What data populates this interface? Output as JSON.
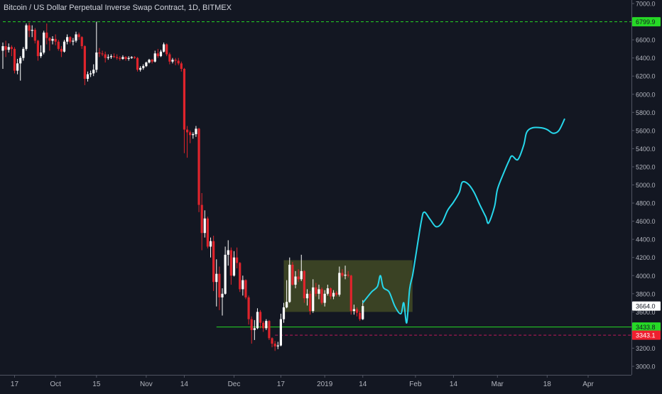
{
  "chart_data": {
    "type": "candlestick",
    "title": "Bitcoin / US Dollar Perpetual Inverse Swap Contract, 1D, BITMEX",
    "grid": false,
    "y_axis": {
      "position": "right",
      "ylim": [
        2900,
        7050
      ],
      "ticks": [
        "7000.0",
        "6800.0",
        "6600.0",
        "6400.0",
        "6200.0",
        "6000.0",
        "5800.0",
        "5600.0",
        "5400.0",
        "5200.0",
        "5000.0",
        "4800.0",
        "4600.0",
        "4400.0",
        "4200.0",
        "4000.0",
        "3800.0",
        "3600.0",
        "3400.0",
        "3200.0",
        "3000.0"
      ]
    },
    "x_axis": {
      "start_date": "2018-09-13",
      "end_date": "2019-04-04",
      "ticks": [
        {
          "label": "17",
          "date": "2018-09-17"
        },
        {
          "label": "Oct",
          "date": "2018-10-01"
        },
        {
          "label": "15",
          "date": "2018-10-15"
        },
        {
          "label": "Nov",
          "date": "2018-11-01"
        },
        {
          "label": "14",
          "date": "2018-11-14"
        },
        {
          "label": "Dec",
          "date": "2018-12-01"
        },
        {
          "label": "17",
          "date": "2018-12-17"
        },
        {
          "label": "2019",
          "date": "2019-01-01"
        },
        {
          "label": "14",
          "date": "2019-01-14"
        },
        {
          "label": "Feb",
          "date": "2019-02-01"
        },
        {
          "label": "14",
          "date": "2019-02-14"
        },
        {
          "label": "Mar",
          "date": "2019-03-01"
        },
        {
          "label": "18",
          "date": "2019-03-18"
        },
        {
          "label": "Apr",
          "date": "2019-04-01"
        }
      ]
    },
    "price_labels": [
      {
        "text": "6799.9",
        "value": 6799.9,
        "color": "#26d926",
        "text_color": "#131722"
      },
      {
        "text": "3664.0",
        "value": 3664.0,
        "color": "#ffffff",
        "text_color": "#131722"
      },
      {
        "text": "3433.8",
        "value": 3433.8,
        "color": "#26d926",
        "text_color": "#131722"
      },
      {
        "text": "3343.1",
        "value": 3343.1,
        "color": "#ef1f2f",
        "text_color": "#ffffff"
      }
    ],
    "horizontal_lines": [
      {
        "value": 6799.9,
        "style": "dashed",
        "color": "#26d926",
        "from": "2018-09-13",
        "to": "2019-04-04"
      },
      {
        "value": 3433.8,
        "style": "solid",
        "color": "#26d926",
        "from": "2018-11-25",
        "to": "2019-04-04"
      },
      {
        "value": 3343.1,
        "style": "dashed",
        "color": "#c2185b",
        "from": "2018-12-15",
        "to": "2019-04-04"
      }
    ],
    "rectangle": {
      "from": "2018-12-18",
      "to": "2019-01-31",
      "y_top": 4170,
      "y_bottom": 3600,
      "fill": "#5b6626",
      "opacity": 0.55
    },
    "projection_path": {
      "color": "#26d7eb",
      "points": [
        [
          "2019-01-14",
          3700
        ],
        [
          "2019-01-17",
          3820
        ],
        [
          "2019-01-19",
          3880
        ],
        [
          "2019-01-20",
          4000
        ],
        [
          "2019-01-21",
          3870
        ],
        [
          "2019-01-23",
          3820
        ],
        [
          "2019-01-25",
          3660
        ],
        [
          "2019-01-27",
          3580
        ],
        [
          "2019-01-28",
          3700
        ],
        [
          "2019-01-29",
          3480
        ],
        [
          "2019-01-30",
          3850
        ],
        [
          "2019-01-31",
          4000
        ],
        [
          "2019-02-01",
          4200
        ],
        [
          "2019-02-03",
          4600
        ],
        [
          "2019-02-04",
          4700
        ],
        [
          "2019-02-06",
          4620
        ],
        [
          "2019-02-08",
          4540
        ],
        [
          "2019-02-10",
          4580
        ],
        [
          "2019-02-12",
          4720
        ],
        [
          "2019-02-14",
          4810
        ],
        [
          "2019-02-16",
          4920
        ],
        [
          "2019-02-17",
          5030
        ],
        [
          "2019-02-19",
          5010
        ],
        [
          "2019-02-21",
          4920
        ],
        [
          "2019-02-23",
          4780
        ],
        [
          "2019-02-25",
          4650
        ],
        [
          "2019-02-26",
          4580
        ],
        [
          "2019-02-28",
          4760
        ],
        [
          "2019-03-01",
          4950
        ],
        [
          "2019-03-03",
          5120
        ],
        [
          "2019-03-05",
          5270
        ],
        [
          "2019-03-06",
          5320
        ],
        [
          "2019-03-08",
          5280
        ],
        [
          "2019-03-10",
          5440
        ],
        [
          "2019-03-11",
          5580
        ],
        [
          "2019-03-13",
          5630
        ],
        [
          "2019-03-16",
          5630
        ],
        [
          "2019-03-18",
          5610
        ],
        [
          "2019-03-20",
          5570
        ],
        [
          "2019-03-22",
          5600
        ],
        [
          "2019-03-24",
          5730
        ]
      ]
    },
    "candles": [
      [
        "2018-09-13",
        6480,
        6570,
        6280,
        6530
      ],
      [
        "2018-09-14",
        6530,
        6590,
        6410,
        6490
      ],
      [
        "2018-09-15",
        6490,
        6560,
        6460,
        6520
      ],
      [
        "2018-09-16",
        6520,
        6540,
        6420,
        6500
      ],
      [
        "2018-09-17",
        6500,
        6520,
        6230,
        6260
      ],
      [
        "2018-09-18",
        6260,
        6390,
        6220,
        6340
      ],
      [
        "2018-09-19",
        6340,
        6420,
        6150,
        6400
      ],
      [
        "2018-09-20",
        6400,
        6520,
        6370,
        6500
      ],
      [
        "2018-09-21",
        6500,
        6780,
        6480,
        6760
      ],
      [
        "2018-09-22",
        6760,
        6790,
        6630,
        6700
      ],
      [
        "2018-09-23",
        6700,
        6760,
        6630,
        6710
      ],
      [
        "2018-09-24",
        6710,
        6730,
        6560,
        6590
      ],
      [
        "2018-09-25",
        6590,
        6600,
        6370,
        6420
      ],
      [
        "2018-09-26",
        6420,
        6540,
        6400,
        6460
      ],
      [
        "2018-09-27",
        6460,
        6700,
        6440,
        6680
      ],
      [
        "2018-09-28",
        6680,
        6780,
        6550,
        6620
      ],
      [
        "2018-09-29",
        6620,
        6630,
        6480,
        6590
      ],
      [
        "2018-09-30",
        6590,
        6640,
        6550,
        6610
      ],
      [
        "2018-10-01",
        6610,
        6660,
        6540,
        6580
      ],
      [
        "2018-10-02",
        6580,
        6600,
        6480,
        6500
      ],
      [
        "2018-10-03",
        6500,
        6530,
        6410,
        6470
      ],
      [
        "2018-10-04",
        6470,
        6600,
        6460,
        6580
      ],
      [
        "2018-10-05",
        6580,
        6660,
        6550,
        6630
      ],
      [
        "2018-10-06",
        6630,
        6640,
        6560,
        6580
      ],
      [
        "2018-10-07",
        6580,
        6620,
        6540,
        6590
      ],
      [
        "2018-10-08",
        6590,
        6690,
        6570,
        6660
      ],
      [
        "2018-10-09",
        6660,
        6680,
        6600,
        6630
      ],
      [
        "2018-10-10",
        6630,
        6640,
        6500,
        6530
      ],
      [
        "2018-10-11",
        6530,
        6540,
        6100,
        6170
      ],
      [
        "2018-10-12",
        6170,
        6250,
        6140,
        6220
      ],
      [
        "2018-10-13",
        6220,
        6260,
        6190,
        6230
      ],
      [
        "2018-10-14",
        6230,
        6330,
        6200,
        6270
      ],
      [
        "2018-10-15",
        6270,
        6800,
        6240,
        6460
      ],
      [
        "2018-10-16",
        6460,
        6510,
        6410,
        6450
      ],
      [
        "2018-10-17",
        6450,
        6480,
        6420,
        6440
      ],
      [
        "2018-10-18",
        6440,
        6470,
        6350,
        6400
      ],
      [
        "2018-10-19",
        6400,
        6440,
        6380,
        6410
      ],
      [
        "2018-10-20",
        6410,
        6440,
        6390,
        6420
      ],
      [
        "2018-10-21",
        6420,
        6450,
        6400,
        6410
      ],
      [
        "2018-10-22",
        6410,
        6440,
        6380,
        6400
      ],
      [
        "2018-10-23",
        6400,
        6420,
        6370,
        6390
      ],
      [
        "2018-10-24",
        6390,
        6430,
        6380,
        6410
      ],
      [
        "2018-10-25",
        6410,
        6420,
        6370,
        6390
      ],
      [
        "2018-10-26",
        6390,
        6420,
        6370,
        6400
      ],
      [
        "2018-10-27",
        6400,
        6420,
        6390,
        6410
      ],
      [
        "2018-10-28",
        6410,
        6420,
        6390,
        6400
      ],
      [
        "2018-10-29",
        6400,
        6410,
        6250,
        6270
      ],
      [
        "2018-10-30",
        6270,
        6310,
        6250,
        6290
      ],
      [
        "2018-10-31",
        6290,
        6330,
        6270,
        6310
      ],
      [
        "2018-11-01",
        6310,
        6360,
        6300,
        6350
      ],
      [
        "2018-11-02",
        6350,
        6390,
        6340,
        6380
      ],
      [
        "2018-11-03",
        6380,
        6390,
        6340,
        6360
      ],
      [
        "2018-11-04",
        6360,
        6480,
        6350,
        6450
      ],
      [
        "2018-11-05",
        6450,
        6500,
        6400,
        6420
      ],
      [
        "2018-11-06",
        6420,
        6490,
        6410,
        6470
      ],
      [
        "2018-11-07",
        6470,
        6570,
        6460,
        6550
      ],
      [
        "2018-11-08",
        6550,
        6560,
        6420,
        6440
      ],
      [
        "2018-11-09",
        6440,
        6460,
        6330,
        6360
      ],
      [
        "2018-11-10",
        6360,
        6400,
        6340,
        6380
      ],
      [
        "2018-11-11",
        6380,
        6400,
        6320,
        6370
      ],
      [
        "2018-11-12",
        6370,
        6400,
        6320,
        6340
      ],
      [
        "2018-11-13",
        6340,
        6360,
        6250,
        6280
      ],
      [
        "2018-11-14",
        6280,
        6290,
        5350,
        5610
      ],
      [
        "2018-11-15",
        5610,
        5650,
        5300,
        5580
      ],
      [
        "2018-11-16",
        5580,
        5600,
        5460,
        5550
      ],
      [
        "2018-11-17",
        5550,
        5580,
        5510,
        5560
      ],
      [
        "2018-11-18",
        5560,
        5650,
        5530,
        5620
      ],
      [
        "2018-11-19",
        5620,
        5630,
        4700,
        4780
      ],
      [
        "2018-11-20",
        4780,
        4910,
        4280,
        4470
      ],
      [
        "2018-11-21",
        4470,
        4720,
        4420,
        4630
      ],
      [
        "2018-11-22",
        4630,
        4650,
        4300,
        4320
      ],
      [
        "2018-11-23",
        4320,
        4420,
        4200,
        4380
      ],
      [
        "2018-11-24",
        4380,
        4440,
        3830,
        3930
      ],
      [
        "2018-11-25",
        3930,
        4180,
        3660,
        4020
      ],
      [
        "2018-11-26",
        4020,
        4100,
        3620,
        3760
      ],
      [
        "2018-11-27",
        3760,
        3860,
        3560,
        3800
      ],
      [
        "2018-11-28",
        3800,
        4320,
        3790,
        4230
      ],
      [
        "2018-11-29",
        4230,
        4390,
        4110,
        4280
      ],
      [
        "2018-11-30",
        4280,
        4310,
        3900,
        4000
      ],
      [
        "2018-12-01",
        4000,
        4270,
        3990,
        4200
      ],
      [
        "2018-12-02",
        4200,
        4310,
        4080,
        4140
      ],
      [
        "2018-12-03",
        4140,
        4150,
        3820,
        3850
      ],
      [
        "2018-12-04",
        3850,
        4000,
        3780,
        3950
      ],
      [
        "2018-12-05",
        3950,
        3960,
        3740,
        3760
      ],
      [
        "2018-12-06",
        3760,
        3780,
        3460,
        3520
      ],
      [
        "2018-12-07",
        3520,
        3550,
        3250,
        3400
      ],
      [
        "2018-12-08",
        3400,
        3510,
        3290,
        3420
      ],
      [
        "2018-12-09",
        3420,
        3640,
        3410,
        3600
      ],
      [
        "2018-12-10",
        3600,
        3620,
        3420,
        3480
      ],
      [
        "2018-12-11",
        3480,
        3500,
        3380,
        3420
      ],
      [
        "2018-12-12",
        3420,
        3520,
        3400,
        3500
      ],
      [
        "2018-12-13",
        3500,
        3510,
        3290,
        3310
      ],
      [
        "2018-12-14",
        3310,
        3320,
        3210,
        3250
      ],
      [
        "2018-12-15",
        3250,
        3280,
        3170,
        3220
      ],
      [
        "2018-12-16",
        3220,
        3270,
        3190,
        3230
      ],
      [
        "2018-12-17",
        3230,
        3580,
        3220,
        3520
      ],
      [
        "2018-12-18",
        3520,
        3700,
        3480,
        3650
      ],
      [
        "2018-12-19",
        3650,
        3950,
        3640,
        3710
      ],
      [
        "2018-12-20",
        3710,
        4200,
        3700,
        4120
      ],
      [
        "2018-12-21",
        4120,
        4150,
        3890,
        3900
      ],
      [
        "2018-12-22",
        3900,
        4050,
        3860,
        3990
      ],
      [
        "2018-12-23",
        3990,
        4070,
        3930,
        3960
      ],
      [
        "2018-12-24",
        3960,
        4230,
        3940,
        4050
      ],
      [
        "2018-12-25",
        4050,
        4060,
        3700,
        3750
      ],
      [
        "2018-12-26",
        3750,
        3850,
        3670,
        3800
      ],
      [
        "2018-12-27",
        3800,
        3830,
        3570,
        3610
      ],
      [
        "2018-12-28",
        3610,
        3960,
        3590,
        3870
      ],
      [
        "2018-12-29",
        3870,
        3920,
        3770,
        3800
      ],
      [
        "2018-12-30",
        3800,
        3900,
        3740,
        3850
      ],
      [
        "2018-12-31",
        3850,
        3870,
        3680,
        3700
      ],
      [
        "2019-01-01",
        3700,
        3840,
        3660,
        3800
      ],
      [
        "2019-01-02",
        3800,
        3900,
        3780,
        3860
      ],
      [
        "2019-01-03",
        3860,
        3870,
        3740,
        3770
      ],
      [
        "2019-01-04",
        3770,
        3840,
        3740,
        3810
      ],
      [
        "2019-01-05",
        3810,
        3830,
        3770,
        3790
      ],
      [
        "2019-01-06",
        3790,
        4100,
        3770,
        4030
      ],
      [
        "2019-01-07",
        4030,
        4070,
        3980,
        4000
      ],
      [
        "2019-01-08",
        4000,
        4110,
        3960,
        4010
      ],
      [
        "2019-01-09",
        4010,
        4050,
        3980,
        4000
      ],
      [
        "2019-01-10",
        4000,
        4010,
        3570,
        3610
      ],
      [
        "2019-01-11",
        3610,
        3680,
        3570,
        3630
      ],
      [
        "2019-01-12",
        3630,
        3650,
        3550,
        3590
      ],
      [
        "2019-01-13",
        3590,
        3610,
        3500,
        3520
      ],
      [
        "2019-01-14",
        3520,
        3730,
        3510,
        3664
      ]
    ]
  }
}
